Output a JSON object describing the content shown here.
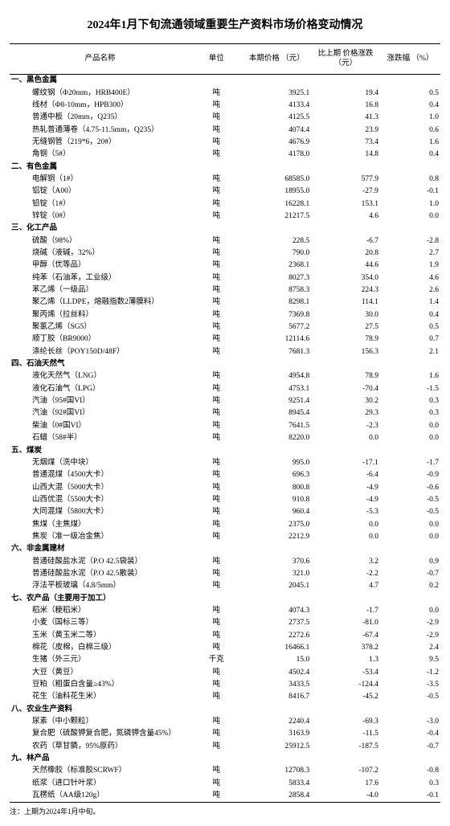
{
  "title": "2024年1月下旬流通领域重要生产资料市场价格变动情况",
  "headers": {
    "name": "产品名称",
    "unit": "单位",
    "price": "本期价格\n（元）",
    "change": "比上期\n价格涨跌\n（元）",
    "pct": "涨跌幅\n（%）"
  },
  "footnote": "注：上期为2024年1月中旬。",
  "categories": [
    {
      "label": "一、黑色金属",
      "items": [
        {
          "name": "螺纹钢（Φ20mm，HRB400E）",
          "unit": "吨",
          "price": "3925.1",
          "change": "19.4",
          "pct": "0.5"
        },
        {
          "name": "线材（Φ8-10mm，HPB300）",
          "unit": "吨",
          "price": "4133.4",
          "change": "16.8",
          "pct": "0.4"
        },
        {
          "name": "普通中板（20mm，Q235）",
          "unit": "吨",
          "price": "4125.5",
          "change": "41.3",
          "pct": "1.0"
        },
        {
          "name": "热轧普通薄卷（4.75-11.5mm，Q235）",
          "unit": "吨",
          "price": "4074.4",
          "change": "23.9",
          "pct": "0.6"
        },
        {
          "name": "无缝钢管（219*6，20#）",
          "unit": "吨",
          "price": "4676.9",
          "change": "73.4",
          "pct": "1.6"
        },
        {
          "name": "角钢（5#）",
          "unit": "吨",
          "price": "4178.0",
          "change": "14.8",
          "pct": "0.4"
        }
      ]
    },
    {
      "label": "二、有色金属",
      "items": [
        {
          "name": "电解铜（1#）",
          "unit": "吨",
          "price": "68585.0",
          "change": "577.9",
          "pct": "0.8"
        },
        {
          "name": "铝锭（A00）",
          "unit": "吨",
          "price": "18955.0",
          "change": "-27.9",
          "pct": "-0.1"
        },
        {
          "name": "铅锭（1#）",
          "unit": "吨",
          "price": "16228.1",
          "change": "153.1",
          "pct": "1.0"
        },
        {
          "name": "锌锭（0#）",
          "unit": "吨",
          "price": "21217.5",
          "change": "4.6",
          "pct": "0.0"
        }
      ]
    },
    {
      "label": "三、化工产品",
      "items": [
        {
          "name": "硫酸（98%）",
          "unit": "吨",
          "price": "228.5",
          "change": "-6.7",
          "pct": "-2.8"
        },
        {
          "name": "烧碱（液碱，32%）",
          "unit": "吨",
          "price": "790.0",
          "change": "20.8",
          "pct": "2.7"
        },
        {
          "name": "甲醇（优等品）",
          "unit": "吨",
          "price": "2368.1",
          "change": "44.6",
          "pct": "1.9"
        },
        {
          "name": "纯苯（石油苯，工业级）",
          "unit": "吨",
          "price": "8027.3",
          "change": "354.0",
          "pct": "4.6"
        },
        {
          "name": "苯乙烯（一级品）",
          "unit": "吨",
          "price": "8758.3",
          "change": "224.3",
          "pct": "2.6"
        },
        {
          "name": "聚乙烯（LLDPE，熔融指数2薄膜料）",
          "unit": "吨",
          "price": "8298.1",
          "change": "114.1",
          "pct": "1.4"
        },
        {
          "name": "聚丙烯（拉丝料）",
          "unit": "吨",
          "price": "7369.8",
          "change": "30.0",
          "pct": "0.4"
        },
        {
          "name": "聚氯乙烯（SG5）",
          "unit": "吨",
          "price": "5677.2",
          "change": "27.5",
          "pct": "0.5"
        },
        {
          "name": "顺丁胶（BR9000）",
          "unit": "吨",
          "price": "12114.6",
          "change": "78.9",
          "pct": "0.7"
        },
        {
          "name": "涤纶长丝（POY150D/48F）",
          "unit": "吨",
          "price": "7681.3",
          "change": "156.3",
          "pct": "2.1"
        }
      ]
    },
    {
      "label": "四、石油天然气",
      "items": [
        {
          "name": "液化天然气（LNG）",
          "unit": "吨",
          "price": "4954.8",
          "change": "78.9",
          "pct": "1.6"
        },
        {
          "name": "液化石油气（LPG）",
          "unit": "吨",
          "price": "4753.1",
          "change": "-70.4",
          "pct": "-1.5"
        },
        {
          "name": "汽油（95#国VI）",
          "unit": "吨",
          "price": "9251.4",
          "change": "30.2",
          "pct": "0.3"
        },
        {
          "name": "汽油（92#国VI）",
          "unit": "吨",
          "price": "8945.4",
          "change": "29.3",
          "pct": "0.3"
        },
        {
          "name": "柴油（0#国VI）",
          "unit": "吨",
          "price": "7641.5",
          "change": "-2.3",
          "pct": "0.0"
        },
        {
          "name": "石蜡（58#半）",
          "unit": "吨",
          "price": "8220.0",
          "change": "0.0",
          "pct": "0.0"
        }
      ]
    },
    {
      "label": "五、煤炭",
      "items": [
        {
          "name": "无烟煤（洗中块）",
          "unit": "吨",
          "price": "995.0",
          "change": "-17.1",
          "pct": "-1.7"
        },
        {
          "name": "普通混煤（4500大卡）",
          "unit": "吨",
          "price": "696.3",
          "change": "-6.4",
          "pct": "-0.9"
        },
        {
          "name": "山西大混（5000大卡）",
          "unit": "吨",
          "price": "800.8",
          "change": "-4.9",
          "pct": "-0.6"
        },
        {
          "name": "山西优混（5500大卡）",
          "unit": "吨",
          "price": "910.8",
          "change": "-4.9",
          "pct": "-0.5"
        },
        {
          "name": "大同混煤（5800大卡）",
          "unit": "吨",
          "price": "960.4",
          "change": "-5.3",
          "pct": "-0.5"
        },
        {
          "name": "焦煤（主焦煤）",
          "unit": "吨",
          "price": "2375.0",
          "change": "0.0",
          "pct": "0.0"
        },
        {
          "name": "焦炭（准一级冶金焦）",
          "unit": "吨",
          "price": "2212.9",
          "change": "0.0",
          "pct": "0.0"
        }
      ]
    },
    {
      "label": "六、非金属建材",
      "items": [
        {
          "name": "普通硅酸盐水泥（P.O 42.5袋装）",
          "unit": "吨",
          "price": "370.6",
          "change": "3.2",
          "pct": "0.9"
        },
        {
          "name": "普通硅酸盐水泥（P.O 42.5散装）",
          "unit": "吨",
          "price": "321.0",
          "change": "-2.2",
          "pct": "-0.7"
        },
        {
          "name": "浮法平板玻璃（4.8/5mm）",
          "unit": "吨",
          "price": "2045.1",
          "change": "4.7",
          "pct": "0.2"
        }
      ]
    },
    {
      "label": "七、农产品（主要用于加工）",
      "items": [
        {
          "name": "稻米（粳稻米）",
          "unit": "吨",
          "price": "4074.3",
          "change": "-1.7",
          "pct": "0.0"
        },
        {
          "name": "小麦（国标三等）",
          "unit": "吨",
          "price": "2737.5",
          "change": "-81.0",
          "pct": "-2.9"
        },
        {
          "name": "玉米（黄玉米二等）",
          "unit": "吨",
          "price": "2272.6",
          "change": "-67.4",
          "pct": "-2.9"
        },
        {
          "name": "棉花（皮棉，白棉三级）",
          "unit": "吨",
          "price": "16466.1",
          "change": "378.2",
          "pct": "2.4"
        },
        {
          "name": "生猪（外三元）",
          "unit": "千克",
          "price": "15.0",
          "change": "1.3",
          "pct": "9.5"
        },
        {
          "name": "大豆（黄豆）",
          "unit": "吨",
          "price": "4502.4",
          "change": "-53.4",
          "pct": "-1.2"
        },
        {
          "name": "豆粕（粗蛋白含量≥43%）",
          "unit": "吨",
          "price": "3433.5",
          "change": "-124.4",
          "pct": "-3.5"
        },
        {
          "name": "花生（油料花生米）",
          "unit": "吨",
          "price": "8416.7",
          "change": "-45.2",
          "pct": "-0.5"
        }
      ]
    },
    {
      "label": "八、农业生产资料",
      "items": [
        {
          "name": "尿素（中小颗粒）",
          "unit": "吨",
          "price": "2240.4",
          "change": "-69.3",
          "pct": "-3.0"
        },
        {
          "name": "复合肥（硫酸钾复合肥，氮磷钾含量45%）",
          "unit": "吨",
          "price": "3163.9",
          "change": "-11.5",
          "pct": "-0.4"
        },
        {
          "name": "农药（草甘膦，95%原药）",
          "unit": "吨",
          "price": "25912.5",
          "change": "-187.5",
          "pct": "-0.7"
        }
      ]
    },
    {
      "label": "九、林产品",
      "items": [
        {
          "name": "天然橡胶（标准胶SCRWF）",
          "unit": "吨",
          "price": "12708.3",
          "change": "-107.2",
          "pct": "-0.8"
        },
        {
          "name": "纸浆（进口针叶浆）",
          "unit": "吨",
          "price": "5833.4",
          "change": "17.6",
          "pct": "0.3"
        },
        {
          "name": "瓦楞纸（AA级120g）",
          "unit": "吨",
          "price": "2858.4",
          "change": "-4.0",
          "pct": "-0.1"
        }
      ]
    }
  ]
}
